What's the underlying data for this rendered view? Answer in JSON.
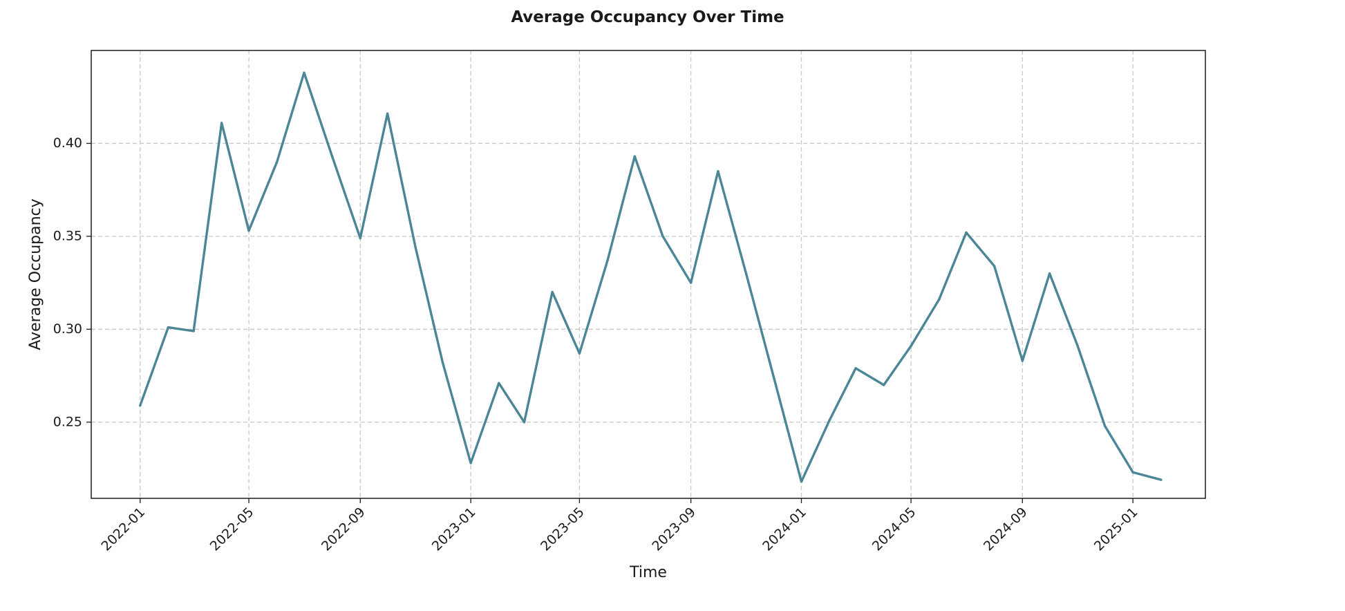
{
  "chart_data": {
    "type": "line",
    "title": "Average Occupancy Over Time",
    "xlabel": "Time",
    "ylabel": "Average Occupancy",
    "grid": true,
    "line_color": "#4a8696",
    "xlim": [
      "2021-11-08",
      "2025-03-22"
    ],
    "ylim": [
      0.209,
      0.45
    ],
    "x_ticks": [
      "2022-01",
      "2022-05",
      "2022-09",
      "2023-01",
      "2023-05",
      "2023-09",
      "2024-01",
      "2024-05",
      "2024-09",
      "2025-01"
    ],
    "y_ticks": [
      "0.25",
      "0.30",
      "0.35",
      "0.40"
    ],
    "x": [
      "2022-01",
      "2022-02",
      "2022-03",
      "2022-04",
      "2022-05",
      "2022-06",
      "2022-07",
      "2022-08",
      "2022-09",
      "2022-10",
      "2022-11",
      "2022-12",
      "2023-01",
      "2023-02",
      "2023-03",
      "2023-04",
      "2023-05",
      "2023-06",
      "2023-07",
      "2023-08",
      "2023-09",
      "2023-10",
      "2023-11",
      "2023-12",
      "2024-01",
      "2024-02",
      "2024-03",
      "2024-04",
      "2024-05",
      "2024-06",
      "2024-07",
      "2024-08",
      "2024-09",
      "2024-10",
      "2024-11",
      "2024-12",
      "2025-01",
      "2025-02"
    ],
    "series": [
      {
        "values": [
          0.259,
          0.301,
          0.299,
          0.411,
          0.353,
          0.39,
          0.438,
          0.393,
          0.349,
          0.416,
          0.344,
          0.282,
          0.228,
          0.271,
          0.25,
          0.32,
          0.287,
          0.337,
          0.393,
          0.35,
          0.325,
          0.385,
          0.33,
          0.275,
          0.218,
          0.251,
          0.279,
          0.27,
          0.291,
          0.316,
          0.352,
          0.334,
          0.283,
          0.33,
          0.291,
          0.248,
          0.223,
          0.219
        ]
      }
    ]
  }
}
